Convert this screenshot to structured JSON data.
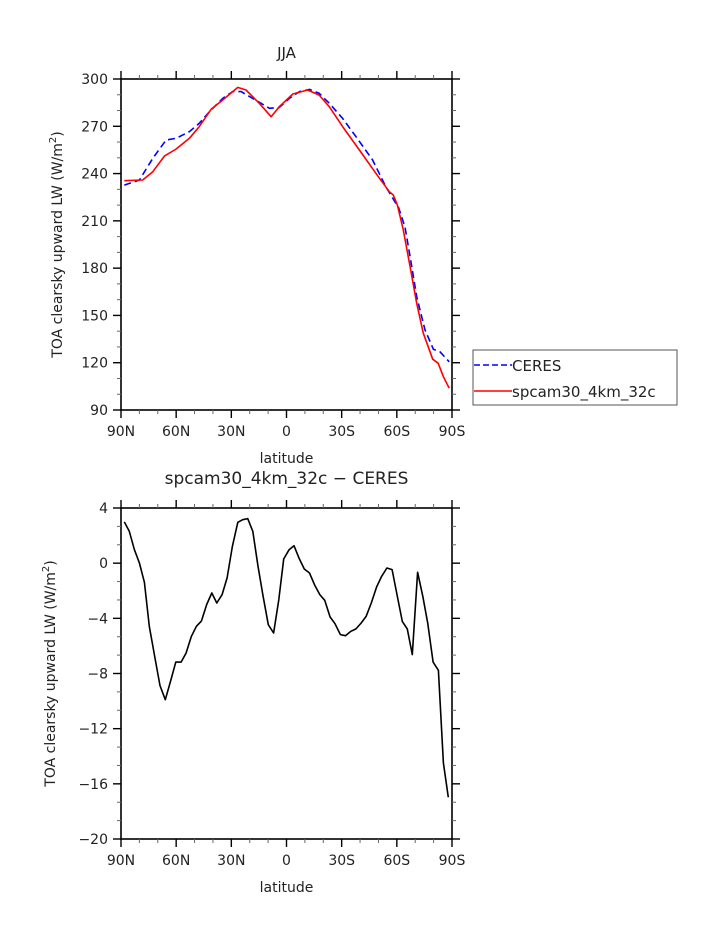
{
  "chart_data": [
    {
      "type": "line",
      "title": "JJA",
      "xlabel": "latitude",
      "ylabel_parts": [
        "TOA clearsky upward LW (W/m",
        "2",
        ")"
      ],
      "xlim": [
        90,
        -90
      ],
      "ylim": [
        90,
        300
      ],
      "xticks": [
        90,
        60,
        30,
        0,
        -30,
        -60,
        -90
      ],
      "xtick_labels": [
        "90N",
        "60N",
        "30N",
        "0",
        "30S",
        "60S",
        "90S"
      ],
      "yticks": [
        90,
        120,
        150,
        180,
        210,
        240,
        270,
        300
      ],
      "ytick_labels": [
        "90",
        "120",
        "150",
        "180",
        "210",
        "240",
        "270",
        "300"
      ],
      "legend_placement": "right, outside",
      "series": [
        {
          "name": "CERES",
          "color": "#0000ff",
          "dash": true,
          "x": [
            88.2,
            80,
            72.7,
            65.5,
            60,
            52.8,
            47.4,
            41.9,
            34.7,
            29.3,
            24.7,
            18.3,
            9.3,
            3.9,
            -1.6,
            -7,
            -12.5,
            -17.8,
            -23.3,
            -30.5,
            -37.8,
            -46.8,
            -54,
            -59.5,
            -60.8,
            -64.4,
            -67.2,
            -70.8,
            -75.3,
            -79.9,
            -83.5,
            -88.5
          ],
          "y": [
            232.7,
            235.9,
            249.7,
            261.3,
            262.4,
            266.6,
            271.9,
            279.3,
            287.7,
            292,
            292,
            287.7,
            281.4,
            282,
            287.7,
            292,
            293.4,
            290.9,
            284.6,
            275,
            263.4,
            248.6,
            231.7,
            221.1,
            219,
            206.3,
            187.3,
            161.9,
            140.8,
            128.5,
            126.9,
            120.6
          ]
        },
        {
          "name": "spcam30_4km_32c",
          "color": "#ff0000",
          "dash": false,
          "x": [
            88.2,
            78.2,
            72.7,
            66.4,
            60,
            52.8,
            47.4,
            41,
            34.7,
            26.5,
            22,
            14.8,
            8.4,
            3.9,
            -3.4,
            -11.5,
            -17.8,
            -23.3,
            -30.5,
            -39.6,
            -48.6,
            -55.9,
            -58.1,
            -60.3,
            -63.5,
            -67.2,
            -70.8,
            -74.4,
            -79.5,
            -82.5,
            -85.3,
            -88.5
          ],
          "y": [
            235.5,
            235.9,
            241.2,
            251.1,
            255.6,
            262.4,
            269.8,
            280.8,
            286.7,
            294.7,
            293,
            284.6,
            276.1,
            282.4,
            290.5,
            293,
            289.8,
            282.4,
            269.8,
            255,
            240.2,
            228.5,
            226.4,
            220,
            204.2,
            180.9,
            157.7,
            138.7,
            122.2,
            119.6,
            111.1,
            103.8
          ]
        }
      ]
    },
    {
      "type": "line",
      "title": "spcam30_4km_32c − CERES",
      "xlabel": "latitude",
      "ylabel_parts": [
        "TOA clearsky upward LW (W/m",
        "2",
        ")"
      ],
      "xlim": [
        90,
        -90
      ],
      "ylim": [
        -20,
        4
      ],
      "xticks": [
        90,
        60,
        30,
        0,
        -30,
        -60,
        -90
      ],
      "xtick_labels": [
        "90N",
        "60N",
        "30N",
        "0",
        "30S",
        "60S",
        "90S"
      ],
      "yticks": [
        -20,
        -16,
        -12,
        -8,
        -4,
        0,
        4
      ],
      "ytick_labels": [
        "−20",
        "−16",
        "−12",
        "−8",
        "−4",
        "0",
        "4"
      ],
      "series": [
        {
          "name": "difference",
          "color": "#000000",
          "dash": false,
          "x": [
            88.2,
            85.5,
            82.7,
            80,
            77.3,
            74.6,
            71.5,
            68.8,
            65.9,
            63.1,
            60.2,
            57.3,
            54.6,
            51.7,
            49,
            46.3,
            43.4,
            40.6,
            37.9,
            35,
            32.3,
            29.4,
            26.5,
            23.8,
            21.1,
            18.3,
            15.5,
            12.7,
            9.9,
            7,
            4.2,
            1.5,
            -1.4,
            -4.1,
            -6.8,
            -9.7,
            -12.5,
            -15.2,
            -18.1,
            -20.8,
            -23.7,
            -26.4,
            -29.3,
            -32.1,
            -35,
            -37.7,
            -40.6,
            -43.3,
            -46.1,
            -49,
            -51.7,
            -54.6,
            -57.4,
            -60.1,
            -63,
            -65.7,
            -68.4,
            -71.3,
            -74.1,
            -76.8,
            -79.7,
            -82.6,
            -85.3,
            -88
          ],
          "y": [
            2.99,
            2.31,
            0.98,
            0.01,
            -1.39,
            -4.58,
            -6.88,
            -8.88,
            -9.9,
            -8.57,
            -7.17,
            -7.17,
            -6.51,
            -5.3,
            -4.58,
            -4.2,
            -3.0,
            -2.16,
            -2.89,
            -2.28,
            -1.07,
            1.22,
            2.96,
            3.15,
            3.23,
            2.31,
            -0.23,
            -2.4,
            -4.46,
            -5.06,
            -2.65,
            0.3,
            0.98,
            1.27,
            0.37,
            -0.42,
            -0.71,
            -1.56,
            -2.28,
            -2.69,
            -3.9,
            -4.39,
            -5.18,
            -5.26,
            -4.94,
            -4.77,
            -4.34,
            -3.86,
            -2.89,
            -1.73,
            -0.96,
            -0.35,
            -0.47,
            -2.28,
            -4.22,
            -4.77,
            -6.63,
            -0.66,
            -2.4,
            -4.34,
            -7.17,
            -7.77,
            -14.49,
            -16.98
          ]
        }
      ]
    }
  ]
}
